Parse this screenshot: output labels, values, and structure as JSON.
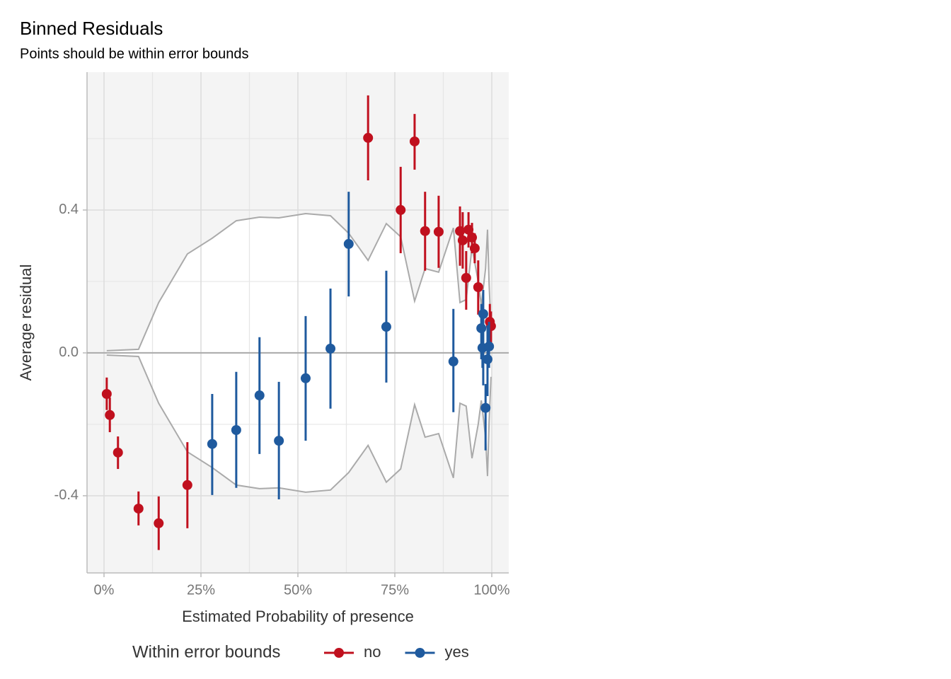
{
  "chart_data": {
    "type": "errorbar",
    "title": "Binned Residuals",
    "subtitle": "Points should be within error bounds",
    "x_label": "Estimated Probability of presence",
    "y_label": "Average residual",
    "legend_title": "Within error bounds",
    "legend_position": "bottom",
    "xlim": [
      -0.0438,
      1.0438
    ],
    "ylim": [
      -0.616,
      0.786
    ],
    "xticks": [
      {
        "value": 0,
        "label": "0%"
      },
      {
        "value": 0.25,
        "label": "25%"
      },
      {
        "value": 0.5,
        "label": "50%"
      },
      {
        "value": 0.75,
        "label": "75%"
      },
      {
        "value": 1,
        "label": "100%"
      }
    ],
    "yticks": [
      -0.4,
      {
        "value": 0,
        "label": "0.0"
      },
      0.4
    ],
    "x_minor_gridlines": [
      0.125,
      0.375,
      0.625,
      0.875
    ],
    "y_minor_gridlines": [
      -0.2,
      0.2,
      0.6
    ],
    "grid": true,
    "reference_line": 0,
    "bounds": {
      "color": "#aaaaaa",
      "x": [
        0.007,
        0.089,
        0.141,
        0.215,
        0.279,
        0.341,
        0.401,
        0.451,
        0.52,
        0.584,
        0.631,
        0.681,
        0.728,
        0.765,
        0.801,
        0.828,
        0.863,
        0.901,
        0.918,
        0.934,
        0.949,
        0.965,
        0.973,
        0.984,
        0.989,
        0.993,
        0.998
      ],
      "upper": [
        0.006,
        0.01,
        0.141,
        0.277,
        0.321,
        0.37,
        0.38,
        0.378,
        0.39,
        0.384,
        0.335,
        0.259,
        0.362,
        0.325,
        0.145,
        0.236,
        0.226,
        0.35,
        0.141,
        0.149,
        0.295,
        0.2,
        0.133,
        0.236,
        0.345,
        0.196,
        0.067
      ],
      "lower": [
        -0.006,
        -0.01,
        -0.141,
        -0.277,
        -0.321,
        -0.37,
        -0.38,
        -0.378,
        -0.39,
        -0.384,
        -0.335,
        -0.259,
        -0.362,
        -0.325,
        -0.145,
        -0.236,
        -0.226,
        -0.35,
        -0.141,
        -0.149,
        -0.295,
        -0.2,
        -0.133,
        -0.236,
        -0.345,
        -0.196,
        -0.067
      ]
    },
    "series": [
      {
        "name": "no",
        "color": "#c0101e",
        "x": [
          0.007,
          0.015,
          0.036,
          0.089,
          0.141,
          0.215,
          0.681,
          0.765,
          0.801,
          0.828,
          0.863,
          0.918,
          0.925,
          0.934,
          0.94,
          0.949,
          0.956,
          0.965,
          0.995,
          0.998
        ],
        "y": [
          -0.115,
          -0.174,
          -0.279,
          -0.436,
          -0.477,
          -0.37,
          0.602,
          0.4,
          0.592,
          0.341,
          0.339,
          0.341,
          0.315,
          0.21,
          0.345,
          0.323,
          0.293,
          0.184,
          0.087,
          0.075
        ],
        "ymin": [
          -0.16,
          -0.222,
          -0.325,
          -0.483,
          -0.552,
          -0.491,
          0.483,
          0.279,
          0.513,
          0.23,
          0.238,
          0.244,
          0.236,
          0.121,
          0.295,
          0.279,
          0.251,
          0.107,
          0.038,
          0.018
        ],
        "ymax": [
          -0.069,
          -0.125,
          -0.234,
          -0.388,
          -0.402,
          -0.25,
          0.721,
          0.521,
          0.669,
          0.451,
          0.44,
          0.41,
          0.394,
          0.285,
          0.394,
          0.364,
          0.335,
          0.259,
          0.137,
          0.116
        ]
      },
      {
        "name": "yes",
        "color": "#1f5a9e",
        "x": [
          0.279,
          0.341,
          0.401,
          0.451,
          0.52,
          0.584,
          0.631,
          0.728,
          0.901,
          0.973,
          0.978,
          0.976,
          0.984,
          0.989,
          0.993
        ],
        "y": [
          -0.255,
          -0.216,
          -0.119,
          -0.246,
          -0.071,
          0.012,
          0.305,
          0.073,
          -0.024,
          0.069,
          0.109,
          0.014,
          -0.154,
          -0.018,
          0.018
        ],
        "ymin": [
          -0.398,
          -0.378,
          -0.283,
          -0.41,
          -0.246,
          -0.156,
          0.158,
          -0.083,
          -0.166,
          -0.018,
          -0.091,
          -0.042,
          -0.273,
          -0.121,
          -0.042
        ],
        "ymax": [
          -0.115,
          -0.053,
          0.044,
          -0.081,
          0.103,
          0.18,
          0.451,
          0.23,
          0.123,
          0.137,
          0.176,
          0.057,
          -0.087,
          0.077,
          0.087
        ]
      }
    ]
  }
}
